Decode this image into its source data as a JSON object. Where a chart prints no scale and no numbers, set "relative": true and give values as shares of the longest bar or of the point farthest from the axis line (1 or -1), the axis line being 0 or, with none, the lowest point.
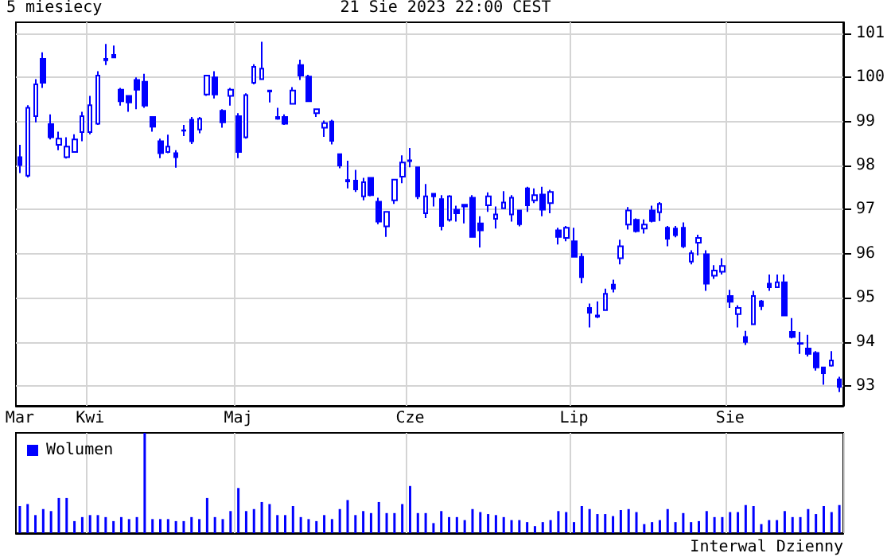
{
  "chart_data": [
    {
      "type": "candlestick",
      "title": "5 miesiecy",
      "subtitle": "21 Sie 2023 22:00 CEST",
      "color": "#0000ff",
      "categories": [
        "Mar",
        null,
        null,
        null,
        null,
        null,
        null,
        null,
        null,
        "Kwi",
        null,
        null,
        null,
        null,
        null,
        null,
        null,
        null,
        null,
        null,
        null,
        null,
        null,
        null,
        null,
        null,
        null,
        null,
        "Maj",
        null,
        null,
        null,
        null,
        null,
        null,
        null,
        null,
        null,
        null,
        null,
        null,
        null,
        null,
        null,
        null,
        null,
        null,
        null,
        null,
        null,
        "Cze",
        null,
        null,
        null,
        null,
        null,
        null,
        null,
        null,
        null,
        null,
        null,
        null,
        null,
        null,
        null,
        null,
        null,
        null,
        null,
        null,
        "Lip",
        null,
        null,
        null,
        null,
        null,
        null,
        null,
        null,
        null,
        null,
        null,
        null,
        null,
        null,
        null,
        null,
        null,
        null,
        null,
        "Sie",
        null,
        null,
        null,
        null,
        null,
        null,
        null,
        null,
        null,
        null,
        null,
        null,
        null,
        null
      ],
      "ohlc": [
        [
          98.19,
          98.47,
          97.83,
          98.01
        ],
        [
          97.77,
          99.37,
          97.73,
          99.31
        ],
        [
          99.12,
          99.96,
          98.98,
          99.84
        ],
        [
          100.42,
          100.57,
          99.76,
          99.88
        ],
        [
          98.94,
          99.16,
          98.59,
          98.64
        ],
        [
          98.47,
          98.77,
          98.35,
          98.61
        ],
        [
          98.19,
          98.64,
          98.16,
          98.43
        ],
        [
          98.31,
          98.71,
          98.31,
          98.59
        ],
        [
          98.76,
          99.22,
          98.55,
          99.12
        ],
        [
          98.76,
          99.58,
          98.71,
          99.37
        ],
        [
          98.95,
          100.14,
          98.92,
          100.04
        ],
        [
          100.42,
          100.76,
          100.28,
          100.39
        ],
        [
          100.51,
          100.72,
          100.45,
          100.45
        ],
        [
          99.72,
          99.76,
          99.36,
          99.46
        ],
        [
          99.58,
          99.6,
          99.22,
          99.43
        ],
        [
          99.94,
          100.0,
          99.28,
          99.72
        ],
        [
          99.9,
          100.08,
          99.31,
          99.36
        ],
        [
          99.1,
          99.1,
          98.77,
          98.88
        ],
        [
          98.55,
          98.61,
          98.17,
          98.28
        ],
        [
          98.31,
          98.7,
          98.28,
          98.43
        ],
        [
          98.28,
          98.35,
          97.95,
          98.19
        ],
        [
          98.8,
          98.92,
          98.67,
          98.79
        ],
        [
          99.04,
          99.1,
          98.49,
          98.55
        ],
        [
          98.82,
          99.1,
          98.73,
          99.06
        ],
        [
          99.61,
          100.06,
          99.58,
          100.04
        ],
        [
          100.0,
          100.14,
          99.52,
          99.61
        ],
        [
          99.24,
          99.28,
          98.86,
          98.98
        ],
        [
          99.58,
          99.76,
          99.36,
          99.72
        ],
        [
          99.12,
          99.19,
          98.17,
          98.31
        ],
        [
          98.64,
          99.64,
          98.61,
          99.6
        ],
        [
          99.88,
          100.3,
          99.84,
          100.24
        ],
        [
          99.96,
          100.81,
          99.94,
          100.2
        ],
        [
          99.7,
          99.72,
          99.43,
          99.68
        ],
        [
          99.1,
          99.31,
          99.04,
          99.06
        ],
        [
          99.1,
          99.16,
          98.92,
          98.95
        ],
        [
          99.4,
          99.78,
          99.4,
          99.7
        ],
        [
          100.28,
          100.4,
          99.94,
          100.04
        ],
        [
          100.02,
          100.06,
          99.44,
          99.46
        ],
        [
          99.19,
          99.28,
          99.1,
          99.28
        ],
        [
          98.86,
          99.02,
          98.65,
          98.96
        ],
        [
          99.0,
          99.04,
          98.48,
          98.56
        ],
        [
          98.26,
          98.26,
          97.94,
          98.0
        ],
        [
          97.67,
          98.11,
          97.48,
          97.64
        ],
        [
          97.66,
          97.9,
          97.4,
          97.46
        ],
        [
          97.3,
          97.72,
          97.21,
          97.62
        ],
        [
          97.72,
          97.74,
          97.3,
          97.33
        ],
        [
          97.18,
          97.27,
          96.67,
          96.73
        ],
        [
          96.62,
          96.95,
          96.38,
          96.95
        ],
        [
          97.21,
          97.68,
          97.13,
          97.68
        ],
        [
          97.75,
          98.23,
          97.6,
          98.07
        ],
        [
          98.12,
          98.4,
          97.96,
          98.1
        ],
        [
          97.96,
          97.96,
          97.24,
          97.3
        ],
        [
          96.92,
          97.58,
          96.81,
          97.3
        ],
        [
          97.36,
          97.36,
          97.07,
          97.3
        ],
        [
          97.24,
          97.33,
          96.53,
          96.63
        ],
        [
          96.77,
          97.33,
          96.73,
          97.3
        ],
        [
          97.0,
          97.09,
          96.73,
          96.92
        ],
        [
          97.11,
          97.11,
          96.69,
          97.07
        ],
        [
          97.27,
          97.33,
          96.38,
          96.38
        ],
        [
          96.69,
          96.85,
          96.14,
          96.53
        ],
        [
          97.1,
          97.39,
          96.95,
          97.3
        ],
        [
          96.79,
          97.07,
          96.57,
          96.89
        ],
        [
          97.03,
          97.42,
          97.03,
          97.16
        ],
        [
          96.89,
          97.33,
          96.73,
          97.27
        ],
        [
          96.98,
          96.98,
          96.62,
          96.67
        ],
        [
          97.48,
          97.52,
          96.95,
          97.1
        ],
        [
          97.21,
          97.48,
          97.15,
          97.33
        ],
        [
          97.34,
          97.52,
          96.85,
          97.0
        ],
        [
          97.15,
          97.45,
          96.92,
          97.4
        ],
        [
          96.53,
          96.59,
          96.21,
          96.38
        ],
        [
          96.36,
          96.63,
          96.28,
          96.59
        ],
        [
          96.28,
          96.59,
          95.93,
          95.93
        ],
        [
          95.93,
          96.01,
          95.33,
          95.47
        ],
        [
          94.77,
          94.87,
          94.33,
          94.66
        ],
        [
          94.6,
          94.92,
          94.54,
          94.57
        ],
        [
          94.72,
          95.21,
          94.72,
          95.09
        ],
        [
          95.3,
          95.41,
          95.12,
          95.21
        ],
        [
          95.9,
          96.32,
          95.76,
          96.17
        ],
        [
          96.66,
          97.06,
          96.55,
          96.98
        ],
        [
          96.77,
          96.8,
          96.48,
          96.51
        ],
        [
          96.57,
          96.78,
          96.46,
          96.66
        ],
        [
          96.98,
          97.09,
          96.71,
          96.74
        ],
        [
          96.94,
          97.17,
          96.74,
          97.13
        ],
        [
          96.59,
          96.63,
          96.17,
          96.34
        ],
        [
          96.57,
          96.63,
          96.37,
          96.42
        ],
        [
          96.59,
          96.71,
          96.13,
          96.17
        ],
        [
          95.82,
          96.08,
          95.76,
          96.01
        ],
        [
          96.25,
          96.43,
          95.96,
          96.36
        ],
        [
          95.99,
          96.08,
          95.16,
          95.32
        ],
        [
          95.5,
          95.74,
          95.43,
          95.62
        ],
        [
          95.59,
          95.9,
          95.53,
          95.72
        ],
        [
          95.04,
          95.18,
          94.77,
          94.91
        ],
        [
          94.63,
          94.83,
          94.33,
          94.77
        ],
        [
          94.11,
          94.25,
          93.93,
          94.0
        ],
        [
          94.4,
          95.16,
          94.4,
          95.04
        ],
        [
          94.92,
          94.95,
          94.72,
          94.81
        ],
        [
          95.32,
          95.53,
          95.16,
          95.24
        ],
        [
          95.24,
          95.53,
          95.24,
          95.35
        ],
        [
          95.35,
          95.53,
          94.6,
          94.6
        ],
        [
          94.23,
          94.54,
          94.08,
          94.11
        ],
        [
          93.97,
          94.23,
          93.73,
          93.96
        ],
        [
          93.85,
          94.16,
          93.67,
          93.73
        ],
        [
          93.75,
          93.79,
          93.35,
          93.42
        ],
        [
          93.42,
          93.44,
          93.03,
          93.29
        ],
        [
          93.46,
          93.79,
          93.44,
          93.58
        ],
        [
          93.15,
          93.21,
          92.86,
          92.98
        ]
      ],
      "ylim": [
        92.55,
        101.25
      ],
      "yticks": [
        93,
        94,
        95,
        96,
        97,
        98,
        99,
        100,
        101
      ],
      "grid": true
    },
    {
      "type": "bar",
      "relative": true,
      "grid": "x",
      "legend": "top left",
      "annotations": [
        "Interwal Dzienny"
      ],
      "categories": [
        null,
        null,
        null,
        null,
        null,
        null,
        null,
        null,
        null,
        null,
        null,
        null,
        null,
        null,
        null,
        null,
        null,
        null,
        null,
        null,
        null,
        null,
        null,
        null,
        null,
        null,
        null,
        null,
        null,
        null,
        null,
        null,
        null,
        null,
        null,
        null,
        null,
        null,
        null,
        null,
        null,
        null,
        null,
        null,
        null,
        null,
        null,
        null,
        null,
        null,
        null,
        null,
        null,
        null,
        null,
        null,
        null,
        null,
        null,
        null,
        null,
        null,
        null,
        null,
        null,
        null,
        null,
        null,
        null,
        null,
        null,
        null,
        null,
        null,
        null,
        null,
        null,
        null,
        null,
        null,
        null,
        null,
        null,
        null,
        null,
        null,
        null,
        null,
        null,
        null,
        null,
        null,
        null,
        null,
        null,
        null,
        null,
        null,
        null,
        null,
        null,
        null,
        null,
        null,
        null,
        null
      ],
      "series": [
        {
          "name": "Wolumen",
          "color": "#0000ff",
          "values": [
            0.27,
            0.29,
            0.18,
            0.24,
            0.22,
            0.35,
            0.35,
            0.12,
            0.16,
            0.18,
            0.18,
            0.16,
            0.12,
            0.16,
            0.14,
            0.16,
            1,
            0.14,
            0.14,
            0.14,
            0.12,
            0.12,
            0.16,
            0.14,
            0.35,
            0.16,
            0.14,
            0.22,
            0.45,
            0.22,
            0.24,
            0.31,
            0.29,
            0.18,
            0.18,
            0.27,
            0.16,
            0.14,
            0.12,
            0.18,
            0.14,
            0.24,
            0.33,
            0.18,
            0.22,
            0.2,
            0.31,
            0.2,
            0.2,
            0.29,
            0.47,
            0.2,
            0.2,
            0.1,
            0.22,
            0.16,
            0.16,
            0.13,
            0.24,
            0.21,
            0.19,
            0.18,
            0.16,
            0.13,
            0.13,
            0.11,
            0.07,
            0.11,
            0.13,
            0.22,
            0.21,
            0.11,
            0.27,
            0.24,
            0.19,
            0.19,
            0.17,
            0.23,
            0.24,
            0.21,
            0.09,
            0.11,
            0.13,
            0.24,
            0.11,
            0.2,
            0.11,
            0.12,
            0.22,
            0.16,
            0.16,
            0.21,
            0.21,
            0.28,
            0.27,
            0.09,
            0.13,
            0.13,
            0.22,
            0.16,
            0.16,
            0.24,
            0.19,
            0.27,
            0.21,
            0.28
          ]
        }
      ]
    }
  ]
}
